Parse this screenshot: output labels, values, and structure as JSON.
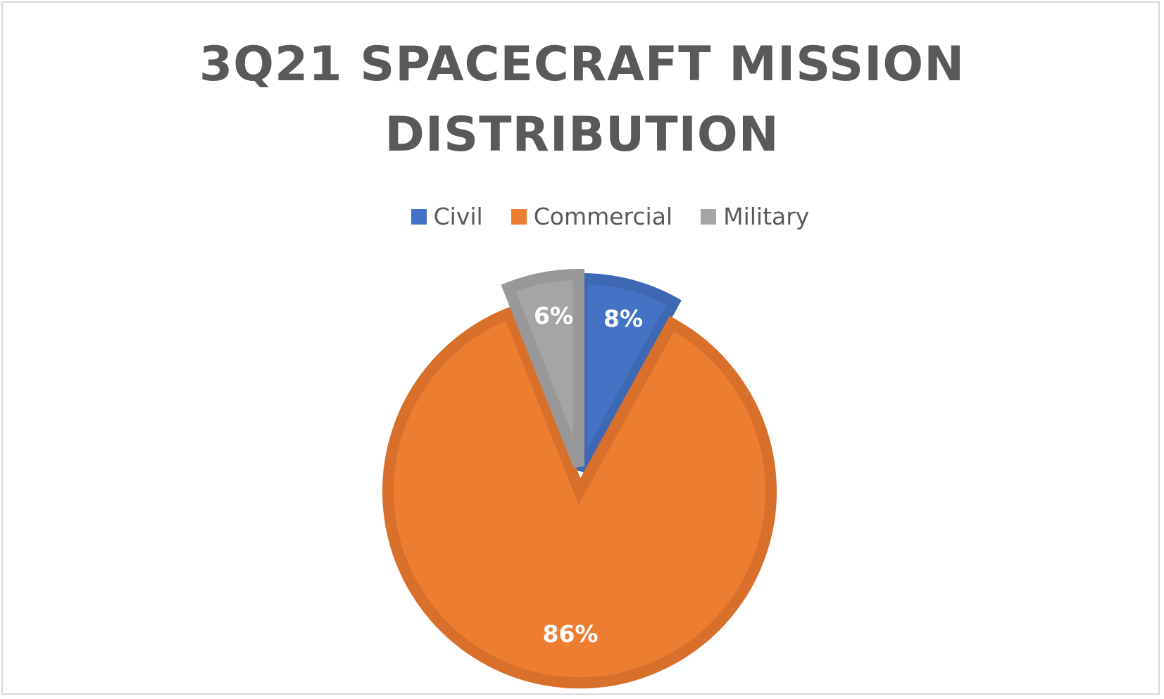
{
  "chart_data": {
    "type": "pie",
    "title": "3Q21 SPACECRAFT MISSION DISTRIBUTION",
    "categories": [
      "Civil",
      "Commercial",
      "Military"
    ],
    "values": [
      8,
      86,
      6
    ],
    "data_labels": [
      "8%",
      "86%",
      "6%"
    ],
    "colors": [
      "#4472c4",
      "#ed7d31",
      "#a5a5a5"
    ],
    "border_colors": [
      "#3e68b4",
      "#d86f2a",
      "#989898"
    ],
    "legend_position": "top"
  }
}
